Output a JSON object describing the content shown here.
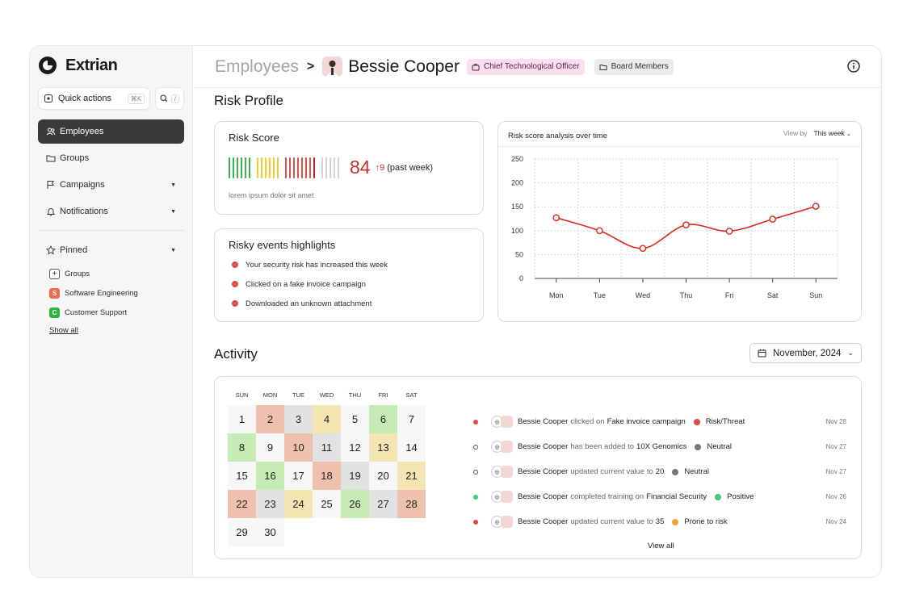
{
  "brand": {
    "name": "Extrian"
  },
  "sidebar": {
    "quick_actions": {
      "label": "Quick actions",
      "shortcut": "⌘K"
    },
    "search": {
      "shortcut": "/"
    },
    "items": [
      {
        "label": "Employees",
        "icon": "users-icon",
        "active": true
      },
      {
        "label": "Groups",
        "icon": "folder-icon"
      },
      {
        "label": "Campaigns",
        "icon": "flag-icon"
      },
      {
        "label": "Notifications",
        "icon": "bell-icon"
      }
    ],
    "pinned": {
      "label": "Pinned",
      "items": [
        {
          "label": "Groups",
          "badge": "+",
          "color": "#ffffff"
        },
        {
          "label": "Software Engineering",
          "badge": "S",
          "color": "#ee6b50"
        },
        {
          "label": "Customer Support",
          "badge": "C",
          "color": "#2fb344"
        }
      ],
      "show_all": "Show all"
    }
  },
  "header": {
    "breadcrumb_root": "Employees",
    "separator": ">",
    "name": "Bessie Cooper",
    "role_tag": "Chief Technological Officer",
    "group_tag": "Board Members"
  },
  "risk_profile": {
    "title": "Risk Profile",
    "score_card": {
      "title": "Risk Score",
      "value": "84",
      "delta": "9",
      "period": "(past week)",
      "caption": "lorem ipsum dolor sit amet",
      "colors": {
        "green": "#3bb54a",
        "yellow": "#f2cc2a",
        "red": "#e2504a",
        "gray": "#d3d3d3",
        "dark_red": "#b3261e"
      }
    },
    "events_card": {
      "title": "Risky events highlights",
      "events": [
        "Your security risk has increased this week",
        "Clicked on a fake invoice campaign",
        "Downloaded an unknown attachment"
      ]
    },
    "chart_card": {
      "title": "Risk score analysis over time",
      "view_by_label": "View by",
      "view_by_value": "This week"
    }
  },
  "chart_data": {
    "type": "line",
    "title": "Risk score analysis over time",
    "categories": [
      "Mon",
      "Tue",
      "Wed",
      "Thu",
      "Fri",
      "Sat",
      "Sun"
    ],
    "series": [
      {
        "values": [
          127,
          100,
          63,
          112,
          99,
          124,
          151
        ],
        "color": "#e0261c"
      }
    ],
    "ylim": [
      0,
      250
    ],
    "yticks": [
      0,
      50,
      100,
      150,
      200,
      250
    ],
    "grid": true
  },
  "activity": {
    "title": "Activity",
    "month": "November, 2024",
    "calendar": {
      "weekdays": [
        "SUN",
        "MON",
        "TUE",
        "WED",
        "THU",
        "FRI",
        "SAT"
      ],
      "days": [
        {
          "d": "1",
          "c": "#f7f7f7"
        },
        {
          "d": "2",
          "c": "#efc0ae"
        },
        {
          "d": "3",
          "c": "#e2e2e2"
        },
        {
          "d": "4",
          "c": "#f3e6b3"
        },
        {
          "d": "5",
          "c": "#f7f7f7"
        },
        {
          "d": "6",
          "c": "#c6ecb4"
        },
        {
          "d": "7",
          "c": "#f7f7f7"
        },
        {
          "d": "8",
          "c": "#c6ecb4"
        },
        {
          "d": "9",
          "c": "#f7f7f7"
        },
        {
          "d": "10",
          "c": "#efc0ae"
        },
        {
          "d": "11",
          "c": "#e2e2e2"
        },
        {
          "d": "12",
          "c": "#f7f7f7"
        },
        {
          "d": "13",
          "c": "#f3e6b3"
        },
        {
          "d": "14",
          "c": "#f7f7f7"
        },
        {
          "d": "15",
          "c": "#f7f7f7"
        },
        {
          "d": "16",
          "c": "#c6ecb4"
        },
        {
          "d": "17",
          "c": "#f7f7f7"
        },
        {
          "d": "18",
          "c": "#efc0ae"
        },
        {
          "d": "19",
          "c": "#e2e2e2"
        },
        {
          "d": "20",
          "c": "#f7f7f7"
        },
        {
          "d": "21",
          "c": "#f3e6b3"
        },
        {
          "d": "22",
          "c": "#efc0ae"
        },
        {
          "d": "23",
          "c": "#e2e2e2"
        },
        {
          "d": "24",
          "c": "#f3e6b3"
        },
        {
          "d": "25",
          "c": "#f7f7f7"
        },
        {
          "d": "26",
          "c": "#c6ecb4"
        },
        {
          "d": "27",
          "c": "#e2e2e2"
        },
        {
          "d": "28",
          "c": "#efc0ae"
        },
        {
          "d": "29",
          "c": "#f7f7f7"
        },
        {
          "d": "30",
          "c": "#f7f7f7"
        }
      ]
    },
    "feed": [
      {
        "name": "Bessie Cooper",
        "verb": "clicked on",
        "target": "Fake invoice campaign",
        "status": "Risk/Threat",
        "status_color": "#e04848",
        "marker": "#e04848",
        "date": "Nov 28"
      },
      {
        "name": "Bessie Cooper",
        "verb": "has been added to",
        "target": "10X Genomics",
        "status": "Neutral",
        "status_color": "#777777",
        "marker": "hollow",
        "date": "Nov 27"
      },
      {
        "name": "Bessie Cooper",
        "verb": "updated current value to",
        "target": "20",
        "status": "Neutral",
        "status_color": "#777777",
        "marker": "hollow",
        "date": "Nov 27"
      },
      {
        "name": "Bessie Cooper",
        "verb": "completed training on",
        "target": "Financial Security",
        "status": "Positive",
        "status_color": "#3dcc7a",
        "marker": "#3dcc7a",
        "date": "Nov 26"
      },
      {
        "name": "Bessie Cooper",
        "verb": "updated current value to",
        "target": "35",
        "status": "Prone to risk",
        "status_color": "#f2a43a",
        "marker": "#e04848",
        "date": "Nov 24"
      }
    ],
    "view_all": "View all"
  }
}
